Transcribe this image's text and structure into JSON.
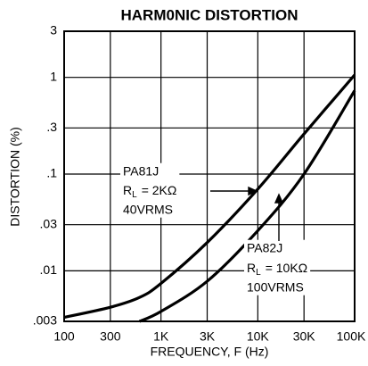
{
  "chart_data": {
    "type": "line",
    "title": "HARM0NIC DISTORTION",
    "x_label": "FREQUENCY, F (Hz)",
    "y_label": "DISTORTION (%)",
    "log_x": true,
    "log_y": true,
    "grid": true,
    "x": [
      100,
      300,
      600,
      1000,
      3000,
      10000,
      30000,
      100000
    ],
    "series": [
      {
        "name": "PA81J",
        "color": "#000000",
        "values": [
          0.0033,
          0.0042,
          0.0053,
          0.0074,
          0.0196,
          0.07,
          0.26,
          1.06
        ]
      },
      {
        "name": "PA82J",
        "color": "#000000",
        "values": [
          null,
          null,
          0.003,
          0.0038,
          0.0078,
          0.026,
          0.1,
          0.73
        ]
      }
    ],
    "xlim": [
      100,
      100000
    ],
    "ylim": [
      0.003,
      3
    ],
    "xticks": [
      100,
      300,
      {
        "value": 1000,
        "label": "1K"
      },
      {
        "value": 3000,
        "label": "3K"
      },
      {
        "value": 10000,
        "label": "10K"
      },
      {
        "value": 30000,
        "label": "30K"
      },
      {
        "value": 100000,
        "label": "100K"
      }
    ],
    "yticks": [
      {
        "value": 0.003,
        "label": ".003"
      },
      {
        "value": 0.01,
        "label": ".01"
      },
      {
        "value": 0.03,
        "label": ".03"
      },
      {
        "value": 0.1,
        "label": ".1"
      },
      {
        "value": 0.3,
        "label": ".3"
      },
      1,
      3
    ],
    "annotations": [
      {
        "device": "PA81J",
        "symbol": "R",
        "subscript": "L",
        "load": "= 2KΩ",
        "voltage": "40VRMS"
      },
      {
        "device": "PA82J",
        "symbol": "R",
        "subscript": "L",
        "load": "= 10KΩ",
        "voltage": "100VRMS"
      }
    ]
  }
}
